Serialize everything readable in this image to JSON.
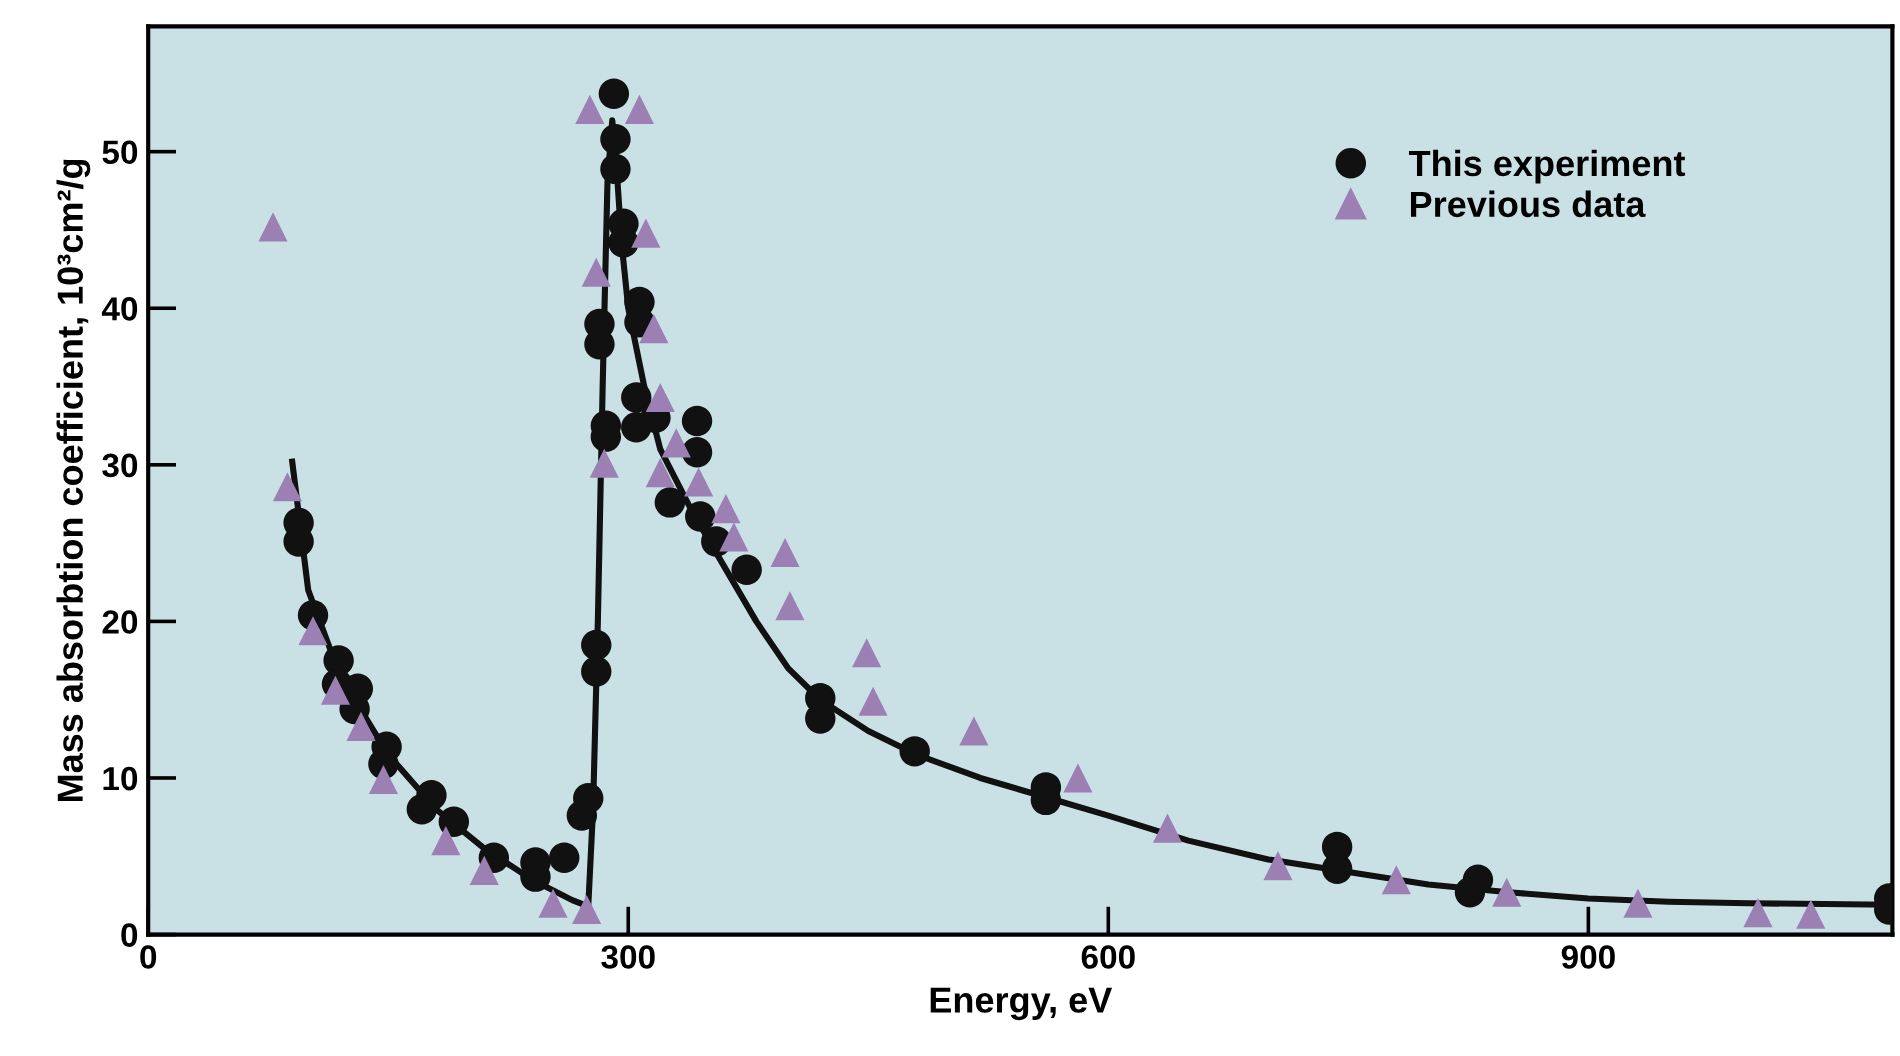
{
  "chart_data": {
    "type": "scatter",
    "xlabel": "Energy, eV",
    "ylabel": "Mass absorbtion coefficient, 10³cm²/g",
    "xlim": [
      0,
      1090
    ],
    "ylim": [
      0,
      58
    ],
    "xticks": [
      0,
      300,
      600,
      900
    ],
    "yticks": [
      0,
      10,
      20,
      30,
      40,
      50
    ],
    "grid": false,
    "legend": "top right",
    "series": [
      {
        "name": "This experiment",
        "marker": "circle",
        "color": "#111111",
        "x": [
          94,
          94,
          103,
          119,
          118,
          131,
          129,
          149,
          147,
          171,
          177,
          191,
          216,
          242,
          242,
          260,
          271,
          275,
          280,
          280,
          282,
          282,
          286,
          286,
          291,
          292,
          292,
          297,
          297,
          307,
          307,
          305,
          305,
          317,
          343,
          343,
          326,
          345,
          355,
          374,
          420,
          420,
          479,
          561,
          561,
          743,
          743,
          831,
          826,
          1088,
          1088
        ],
        "values": [
          26.3,
          25.1,
          20.4,
          17.5,
          16.0,
          15.7,
          14.4,
          12.0,
          10.9,
          8.0,
          8.9,
          7.2,
          4.9,
          3.7,
          4.6,
          4.9,
          7.6,
          8.7,
          18.5,
          16.8,
          37.7,
          39.0,
          31.8,
          32.5,
          53.7,
          50.8,
          48.9,
          45.4,
          44.2,
          40.4,
          39.1,
          34.3,
          32.4,
          33.0,
          32.8,
          30.8,
          27.6,
          26.7,
          25.1,
          23.3,
          15.1,
          13.8,
          11.7,
          9.4,
          8.6,
          5.6,
          4.2,
          3.5,
          2.7,
          2.3,
          1.6
        ]
      },
      {
        "name": "Previous data",
        "marker": "triangle",
        "color": "#9c80b4",
        "x": [
          78,
          87,
          103,
          117,
          133,
          147,
          186,
          210,
          253,
          274,
          285,
          280,
          276,
          307,
          311,
          316,
          320,
          330,
          320,
          344,
          361,
          366,
          398,
          401,
          449,
          453,
          516,
          581,
          637,
          706,
          780,
          849,
          931,
          1006,
          1039
        ],
        "values": [
          45.2,
          28.6,
          19.4,
          15.6,
          13.3,
          9.9,
          6.0,
          4.1,
          2.0,
          1.6,
          30.1,
          42.3,
          52.7,
          52.7,
          44.8,
          38.7,
          34.3,
          31.4,
          29.5,
          28.9,
          27.2,
          25.4,
          24.4,
          21.0,
          18.0,
          14.9,
          13.0,
          10.0,
          6.8,
          4.4,
          3.5,
          2.7,
          2.0,
          1.4,
          1.3
        ]
      },
      {
        "type": "line",
        "color": "#111111",
        "line_style": "solid",
        "x": [
          90,
          100,
          120,
          150,
          180,
          210,
          240,
          265,
          275,
          278,
          281,
          284,
          287,
          290,
          292,
          296,
          300,
          310,
          320,
          340,
          360,
          380,
          400,
          420,
          450,
          480,
          520,
          560,
          600,
          650,
          700,
          750,
          800,
          850,
          900,
          950,
          1000,
          1090
        ],
        "values": [
          30.2,
          22,
          16.5,
          11.5,
          8,
          5.5,
          3.5,
          2.2,
          1.8,
          8,
          20,
          35,
          48,
          52,
          50,
          44,
          40,
          35,
          31,
          27,
          23.5,
          20,
          17,
          15,
          13,
          11.5,
          10,
          8.8,
          7.6,
          6,
          4.8,
          4,
          3.2,
          2.7,
          2.3,
          2.1,
          2,
          1.9
        ]
      }
    ]
  }
}
